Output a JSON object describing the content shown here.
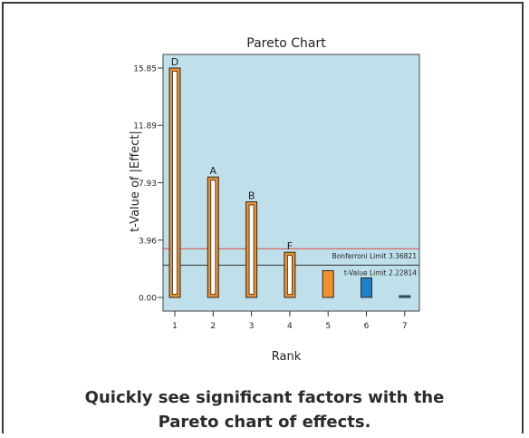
{
  "caption": {
    "line1": "Quickly see significant factors with the",
    "line2": "Pareto chart of effects."
  },
  "chart_data": {
    "type": "bar",
    "title": "Pareto Chart",
    "xlabel": "Rank",
    "ylabel": "t-Value of |Effect|",
    "categories": [
      "1",
      "2",
      "3",
      "4",
      "5",
      "6",
      "7"
    ],
    "values": [
      15.85,
      8.32,
      6.61,
      3.12,
      1.85,
      1.35,
      0.12
    ],
    "bar_labels": [
      "D",
      "A",
      "B",
      "F",
      "",
      "",
      ""
    ],
    "ylim": [
      0,
      16.5
    ],
    "yticks": [
      "0.00",
      "3.96",
      "7.93",
      "11.89",
      "15.85"
    ],
    "ytick_values": [
      0,
      3.96,
      7.93,
      11.89,
      15.85
    ],
    "colors": {
      "plot_background": "#bfe0ea",
      "positive_effect": "#f0902a",
      "negative_effect": "#1f7fc8",
      "bonferroni_line": "#d9473f",
      "t_value_line": "#303030"
    },
    "bar_effect_sign": [
      "positive",
      "positive",
      "positive",
      "positive",
      "positive",
      "negative",
      "negative"
    ],
    "bar_outline_only": [
      true,
      true,
      true,
      true,
      false,
      false,
      false
    ],
    "reference_lines": [
      {
        "label": "Bonferroni Limit 3.36821",
        "value": 3.36821,
        "color": "#d9473f"
      },
      {
        "label": "t-Value Limit 2.22814",
        "value": 2.22814,
        "color": "#303030"
      }
    ]
  }
}
